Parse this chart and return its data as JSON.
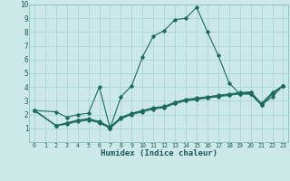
{
  "xlabel": "Humidex (Indice chaleur)",
  "background_color": "#cce9e8",
  "grid_color": "#aad4d2",
  "line_color": "#1a6b5a",
  "xlim": [
    -0.5,
    23.5
  ],
  "ylim": [
    0,
    10
  ],
  "xticks": [
    0,
    1,
    2,
    3,
    4,
    5,
    6,
    7,
    8,
    9,
    10,
    11,
    12,
    13,
    14,
    15,
    16,
    17,
    18,
    19,
    20,
    21,
    22,
    23
  ],
  "yticks": [
    1,
    2,
    3,
    4,
    5,
    6,
    7,
    8,
    9,
    10
  ],
  "series": [
    {
      "x": [
        0,
        2,
        3,
        4,
        5,
        6,
        7,
        8,
        9,
        10,
        11,
        12,
        13,
        14,
        15,
        16,
        17,
        18,
        19,
        20,
        21,
        22,
        23
      ],
      "y": [
        2.3,
        2.2,
        1.8,
        2.0,
        2.1,
        4.0,
        1.0,
        3.3,
        4.1,
        6.2,
        7.7,
        8.1,
        8.9,
        9.0,
        9.8,
        8.0,
        6.3,
        4.3,
        3.5,
        3.5,
        2.7,
        3.3,
        4.1
      ]
    },
    {
      "x": [
        0,
        2,
        3,
        4,
        5,
        6,
        7,
        8,
        9,
        10,
        11,
        12,
        13,
        14,
        15,
        16,
        17,
        18,
        19,
        20,
        21,
        22,
        23
      ],
      "y": [
        2.3,
        1.2,
        1.3,
        1.5,
        1.6,
        1.4,
        1.0,
        1.7,
        2.0,
        2.2,
        2.4,
        2.5,
        2.8,
        3.0,
        3.1,
        3.2,
        3.3,
        3.4,
        3.5,
        3.5,
        2.7,
        3.5,
        4.1
      ]
    },
    {
      "x": [
        0,
        2,
        3,
        4,
        5,
        6,
        7,
        8,
        9,
        10,
        11,
        12,
        13,
        14,
        15,
        16,
        17,
        18,
        19,
        20,
        21,
        22,
        23
      ],
      "y": [
        2.3,
        1.2,
        1.35,
        1.55,
        1.65,
        1.45,
        1.05,
        1.75,
        2.05,
        2.25,
        2.45,
        2.55,
        2.85,
        3.05,
        3.15,
        3.25,
        3.35,
        3.45,
        3.55,
        3.6,
        2.75,
        3.55,
        4.1
      ]
    },
    {
      "x": [
        0,
        2,
        3,
        4,
        5,
        6,
        7,
        8,
        9,
        10,
        11,
        12,
        13,
        14,
        15,
        16,
        17,
        18,
        19,
        20,
        21,
        22,
        23
      ],
      "y": [
        2.3,
        1.2,
        1.4,
        1.6,
        1.7,
        1.5,
        1.1,
        1.8,
        2.1,
        2.3,
        2.5,
        2.6,
        2.9,
        3.1,
        3.2,
        3.3,
        3.4,
        3.5,
        3.6,
        3.65,
        2.8,
        3.6,
        4.1
      ]
    }
  ]
}
